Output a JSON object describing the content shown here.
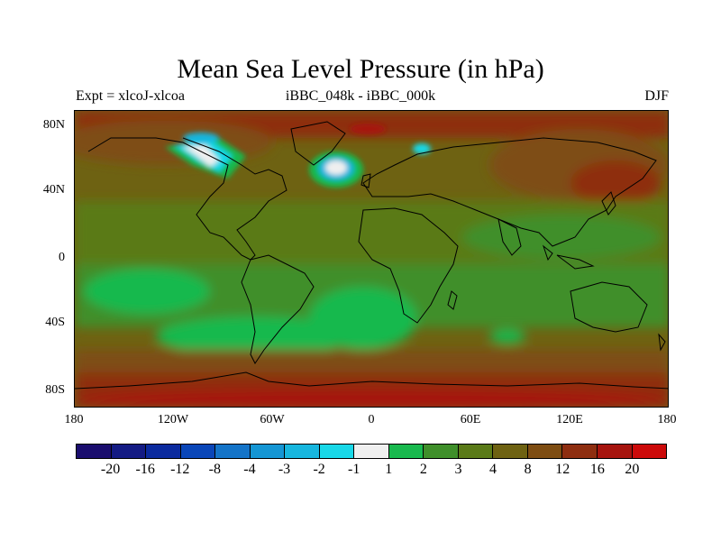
{
  "title": "Mean Sea Level Pressure (in hPa)",
  "subtitle_left": "Expt = xlcoJ-xlcoa",
  "subtitle_center": "iBBC_048k - iBBC_000k",
  "subtitle_right": "DJF",
  "y_ticks": [
    "80N",
    "40N",
    "0",
    "40S",
    "80S"
  ],
  "x_ticks": [
    "180",
    "120W",
    "60W",
    "0",
    "60E",
    "120E",
    "180"
  ],
  "colorbar": {
    "labels": [
      "-20",
      "-16",
      "-12",
      "-8",
      "-4",
      "-3",
      "-2",
      "-1",
      "1",
      "2",
      "3",
      "4",
      "8",
      "12",
      "16",
      "20"
    ],
    "colors": [
      "#1a0d6e",
      "#141b84",
      "#0b2a9e",
      "#0a46b8",
      "#1474c8",
      "#1596d4",
      "#17b6de",
      "#19d8e8",
      "#efefef",
      "#19b94e",
      "#3f8f2a",
      "#5a7a18",
      "#6e6212",
      "#7e4d12",
      "#8e2e10",
      "#a6140e",
      "#cc0a0a"
    ]
  },
  "chart_data": {
    "type": "heatmap",
    "title": "Mean Sea Level Pressure (in hPa)",
    "variable": "Mean Sea Level Pressure difference",
    "units": "hPa",
    "experiment": "xlcoJ-xlcoa",
    "comparison": "iBBC_048k - iBBC_000k",
    "season": "DJF",
    "x_range": [
      -180,
      180
    ],
    "y_range": [
      -90,
      90
    ],
    "levels": [
      -20,
      -16,
      -12,
      -8,
      -4,
      -3,
      -2,
      -1,
      1,
      2,
      3,
      4,
      8,
      12,
      16,
      20
    ]
  }
}
